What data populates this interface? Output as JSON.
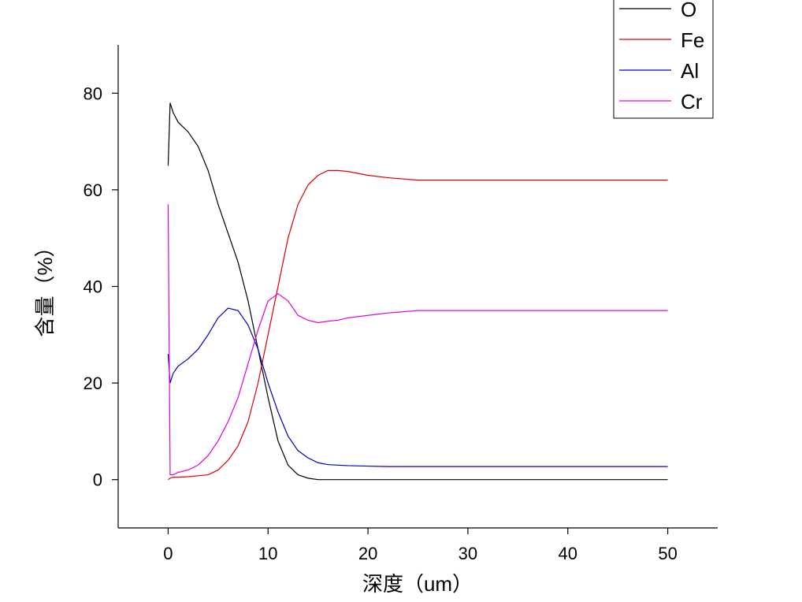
{
  "chart_data": {
    "type": "line",
    "x_label": "深度（um）",
    "y_label": "含量（%）",
    "x": [
      0,
      0.2,
      0.5,
      1,
      2,
      3,
      4,
      5,
      6,
      7,
      8,
      9,
      10,
      11,
      12,
      13,
      14,
      15,
      16,
      17,
      18,
      20,
      22,
      25,
      30,
      35,
      40,
      45,
      50
    ],
    "series": [
      {
        "name": "O",
        "color": "#000000",
        "values": [
          65,
          78,
          76,
          74,
          72,
          69,
          64,
          57,
          51,
          45,
          37,
          27,
          17,
          8,
          3,
          1,
          0.3,
          0,
          0,
          0,
          0,
          0,
          0,
          0,
          0,
          0,
          0,
          0,
          0
        ]
      },
      {
        "name": "Fe",
        "color": "#e00000",
        "values": [
          0,
          0.3,
          0.5,
          0.5,
          0.6,
          0.8,
          1,
          2,
          4,
          7,
          12,
          20,
          30,
          40,
          50,
          57,
          61,
          63,
          64,
          64,
          63.8,
          63,
          62.5,
          62,
          62,
          62,
          62,
          62,
          62
        ]
      },
      {
        "name": "Al",
        "color": "#0000c0",
        "values": [
          26,
          20,
          22,
          23.5,
          25,
          27,
          30,
          33.5,
          35.5,
          35,
          32,
          27,
          20,
          14,
          9,
          6,
          4.5,
          3.5,
          3.1,
          3,
          2.9,
          2.8,
          2.7,
          2.7,
          2.7,
          2.7,
          2.7,
          2.7,
          2.7
        ]
      },
      {
        "name": "Cr",
        "color": "#e000e0",
        "values": [
          57,
          1,
          1,
          1.5,
          2,
          3,
          5,
          8,
          12,
          17,
          24,
          31,
          37,
          38.5,
          37,
          34,
          33,
          32.5,
          32.8,
          33,
          33.5,
          34,
          34.5,
          35,
          35,
          35,
          35,
          35,
          35
        ]
      }
    ],
    "xlim": [
      -5,
      55
    ],
    "ylim": [
      -10,
      90
    ],
    "xticks": [
      0,
      10,
      20,
      30,
      40,
      50
    ],
    "yticks": [
      0,
      20,
      40,
      60,
      80
    ],
    "legend": "top-right"
  }
}
